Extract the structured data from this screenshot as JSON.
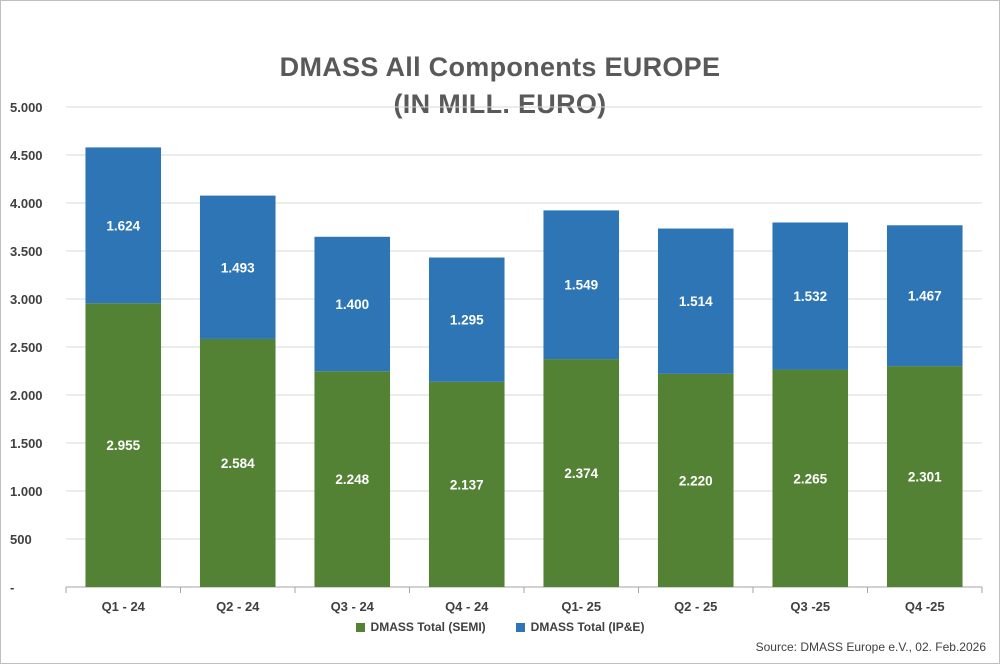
{
  "title_line1": "DMASS All Components EUROPE",
  "title_line2": "(IN MILL. EURO)",
  "source": "Source: DMASS Europe e.V., 02. Feb.2026",
  "colors": {
    "semi": "#548235",
    "ipe": "#2e75b6",
    "grid": "#d9d9d9",
    "axis": "#a6a6a6"
  },
  "chart_data": {
    "type": "bar",
    "stacked": true,
    "categories": [
      "Q1 - 24",
      "Q2 - 24",
      "Q3 - 24",
      "Q4 - 24",
      "Q1- 25",
      "Q2 - 25",
      "Q3 -25",
      "Q4 -25"
    ],
    "series": [
      {
        "name": "DMASS Total (SEMI)",
        "values": [
          2955,
          2584,
          2248,
          2137,
          2374,
          2220,
          2265,
          2301
        ],
        "labels": [
          "2.955",
          "2.584",
          "2.248",
          "2.137",
          "2.374",
          "2.220",
          "2.265",
          "2.301"
        ]
      },
      {
        "name": "DMASS Total  (IP&E)",
        "values": [
          1624,
          1493,
          1400,
          1295,
          1549,
          1514,
          1532,
          1467
        ],
        "labels": [
          "1.624",
          "1.493",
          "1.400",
          "1.295",
          "1.549",
          "1.514",
          "1.532",
          "1.467"
        ]
      }
    ],
    "ylim": [
      0,
      5000
    ],
    "yticks": [
      0,
      500,
      1000,
      1500,
      2000,
      2500,
      3000,
      3500,
      4000,
      4500,
      5000
    ],
    "ytick_labels": [
      "-",
      "500",
      "1.000",
      "1.500",
      "2.000",
      "2.500",
      "3.000",
      "3.500",
      "4.000",
      "4.500",
      "5.000"
    ],
    "grid": true,
    "legend": "bottom"
  }
}
